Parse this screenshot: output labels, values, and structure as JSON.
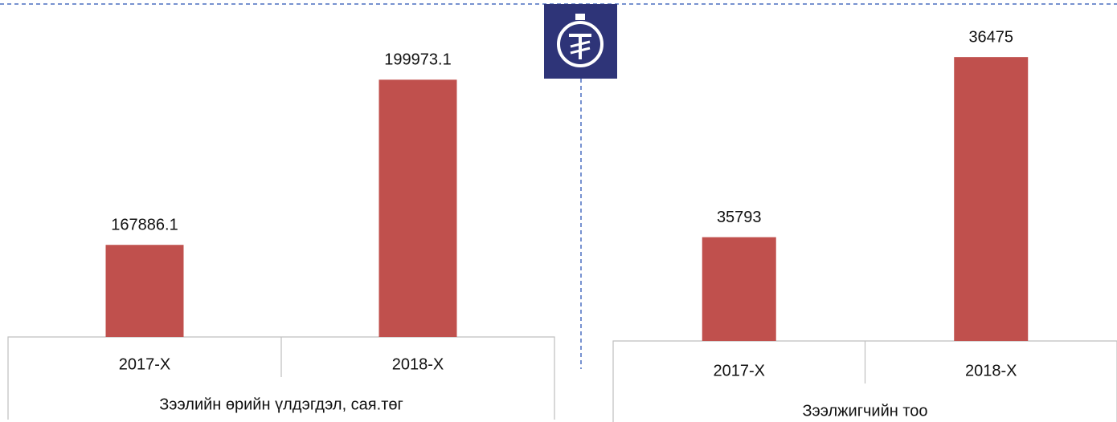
{
  "chart_data": [
    {
      "type": "bar",
      "x_label": "Зээлийн өрийн үлдэгдэл, сая.төг",
      "categories": [
        "2017-X",
        "2018-X"
      ],
      "values": [
        167886.1,
        199973.1
      ],
      "color": "#c0504d",
      "ylim": [
        150000,
        210000
      ]
    },
    {
      "type": "bar",
      "x_label": "Зээлжигчийн тоо",
      "categories": [
        "2017-X",
        "2018-X"
      ],
      "values": [
        35793,
        36475
      ],
      "color": "#c0504d",
      "ylim": [
        35400,
        36600
      ]
    }
  ]
}
